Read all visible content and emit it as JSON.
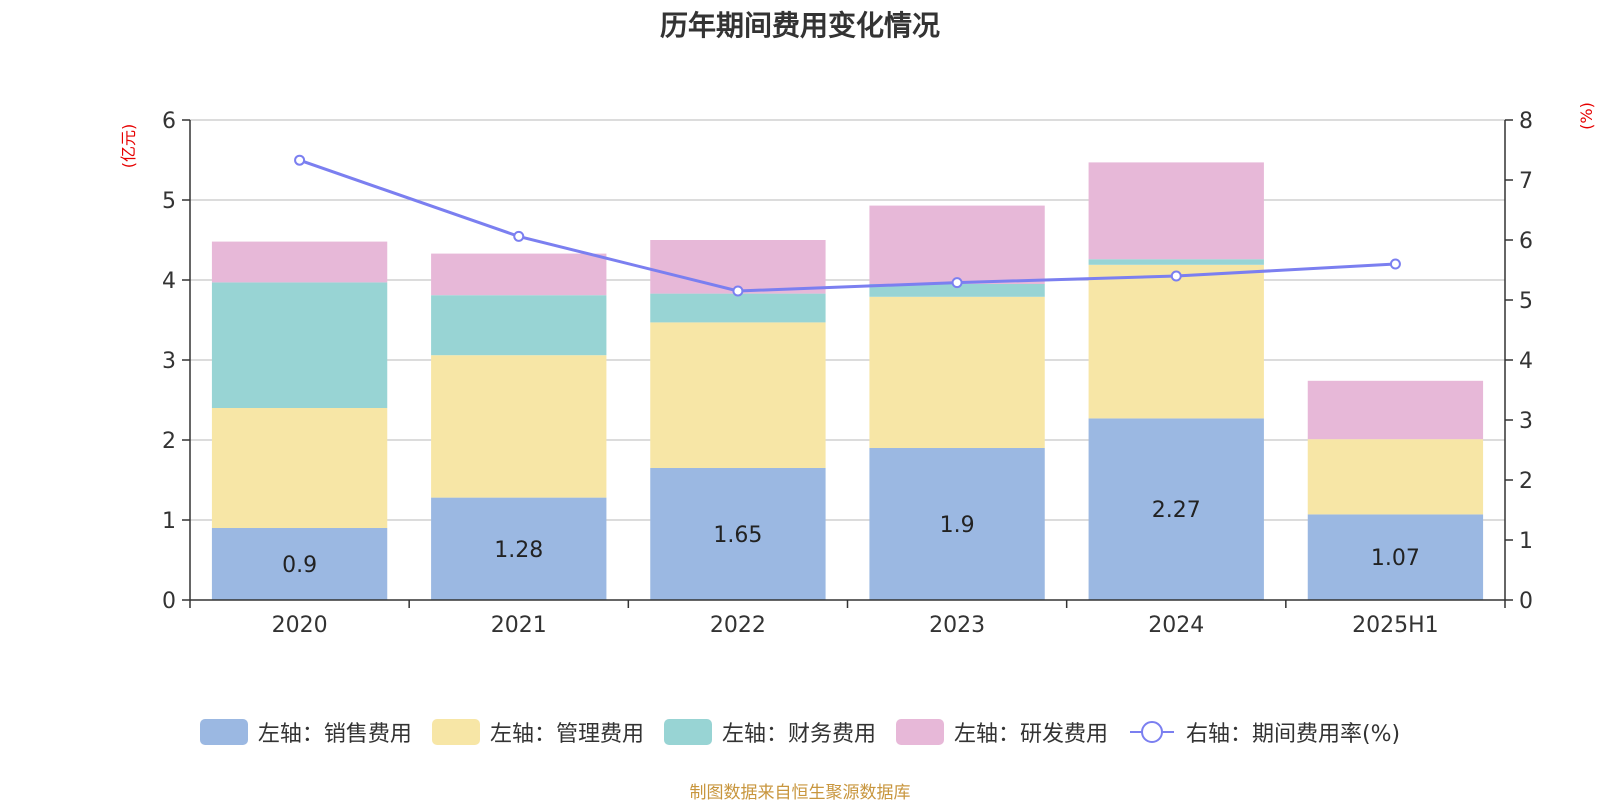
{
  "chart_data": {
    "type": "bar",
    "title": "历年期间费用变化情况",
    "left_axis_unit": "(亿元)",
    "right_axis_unit": "(%)",
    "categories": [
      "2020",
      "2021",
      "2022",
      "2023",
      "2024",
      "2025H1"
    ],
    "ylim_left": [
      0,
      6
    ],
    "ylim_right": [
      0,
      8
    ],
    "left_ticks": [
      "0",
      "1",
      "2",
      "3",
      "4",
      "5",
      "6"
    ],
    "right_ticks": [
      "0",
      "1",
      "2",
      "3",
      "4",
      "5",
      "6",
      "7",
      "8"
    ],
    "grid": true,
    "legend_position": "bottom",
    "stacked": true,
    "series": [
      {
        "name": "左轴：销售费用",
        "axis": "left",
        "kind": "bar",
        "color": "#9bb8e2",
        "values": [
          0.9,
          1.28,
          1.65,
          1.9,
          2.27,
          1.07
        ],
        "data_labels": [
          "0.9",
          "1.28",
          "1.65",
          "1.9",
          "2.27",
          "1.07"
        ]
      },
      {
        "name": "左轴：管理费用",
        "axis": "left",
        "kind": "bar",
        "color": "#f7e6a6",
        "values": [
          1.5,
          1.78,
          1.82,
          1.89,
          1.92,
          0.94
        ]
      },
      {
        "name": "左轴：财务费用",
        "axis": "left",
        "kind": "bar",
        "color": "#98d4d4",
        "values": [
          1.57,
          0.75,
          0.36,
          0.16,
          0.07,
          0.0
        ]
      },
      {
        "name": "左轴：研发费用",
        "axis": "left",
        "kind": "bar",
        "color": "#e7b8d8",
        "values": [
          0.51,
          0.52,
          0.67,
          0.98,
          1.21,
          0.73
        ]
      },
      {
        "name": "右轴：期间费用率(%)",
        "axis": "right",
        "kind": "line",
        "color": "#7b7ff0",
        "values": [
          7.33,
          6.06,
          5.15,
          5.29,
          5.4,
          5.6
        ]
      }
    ]
  },
  "footer": {
    "source": "制图数据来自恒生聚源数据库"
  }
}
